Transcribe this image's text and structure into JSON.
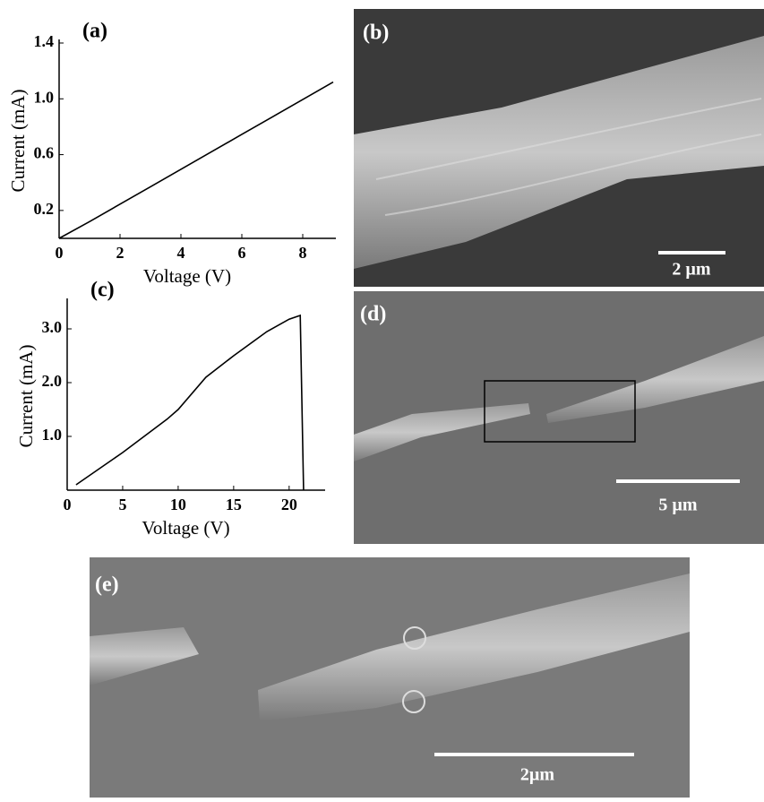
{
  "chart_data": [
    {
      "type": "line",
      "title": "(a)",
      "x_label": "Voltage (V)",
      "y_label": "Current (mA)",
      "x": [
        0,
        1,
        2,
        3,
        4,
        5,
        6,
        7,
        8,
        9
      ],
      "values": [
        0,
        0.12,
        0.245,
        0.37,
        0.495,
        0.62,
        0.745,
        0.87,
        0.995,
        1.12
      ],
      "color": "#000000",
      "xlim": [
        0,
        9
      ],
      "ylim": [
        0,
        1.4
      ],
      "xticks": [
        0,
        2,
        4,
        6,
        8
      ],
      "yticks": [
        0.2,
        0.6,
        1.0,
        1.4
      ]
    },
    {
      "type": "line",
      "title": "(c)",
      "x_label": "Voltage (V)",
      "y_label": "Current (mA)",
      "x": [
        0.8,
        5,
        9,
        10,
        12.5,
        15,
        18,
        20,
        21,
        21.3
      ],
      "values": [
        0.1,
        0.7,
        1.32,
        1.5,
        2.1,
        2.5,
        2.95,
        3.18,
        3.25,
        0
      ],
      "color": "#000000",
      "xlim": [
        0,
        23
      ],
      "ylim": [
        0,
        3.5
      ],
      "xticks": [
        0,
        5,
        10,
        15,
        20
      ],
      "yticks": [
        1.0,
        2.0,
        3.0
      ]
    }
  ],
  "images": [
    {
      "label": "(b)",
      "scale_bar": "2 µm"
    },
    {
      "label": "(d)",
      "scale_bar": "5 µm"
    },
    {
      "label": "(e)",
      "scale_bar": "2µm"
    }
  ]
}
